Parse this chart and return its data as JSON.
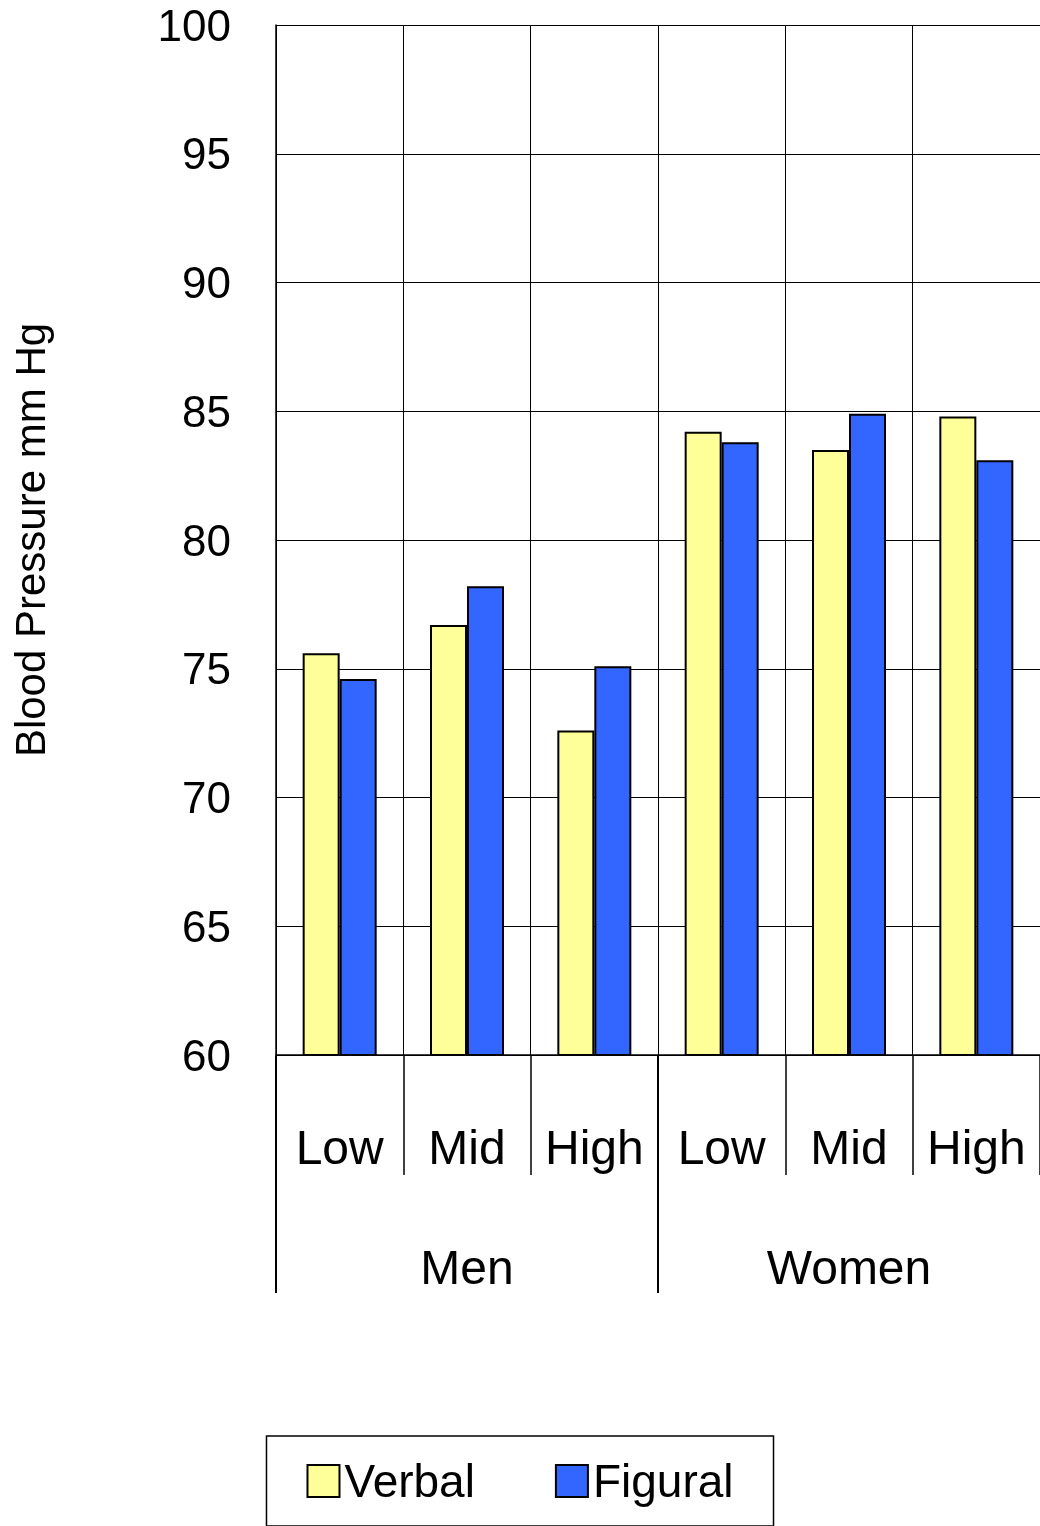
{
  "chart_data": {
    "type": "bar",
    "ylabel": "Blood Pressure mm Hg",
    "categories": [
      "Low",
      "Mid",
      "High",
      "Low",
      "Mid",
      "High"
    ],
    "annotations": [
      "Men",
      "Women"
    ],
    "series": [
      {
        "name": "Verbal",
        "color": "#ffff99",
        "values": [
          75.6,
          76.7,
          72.6,
          84.2,
          83.5,
          84.8
        ]
      },
      {
        "name": "Figural",
        "color": "#3366ff",
        "values": [
          74.6,
          78.2,
          75.1,
          83.8,
          84.9,
          83.1
        ]
      }
    ],
    "ylim": [
      60,
      100
    ],
    "yticks": [
      60,
      65,
      70,
      75,
      80,
      85,
      90,
      95,
      100
    ],
    "grid": true,
    "legend": "bottom"
  }
}
